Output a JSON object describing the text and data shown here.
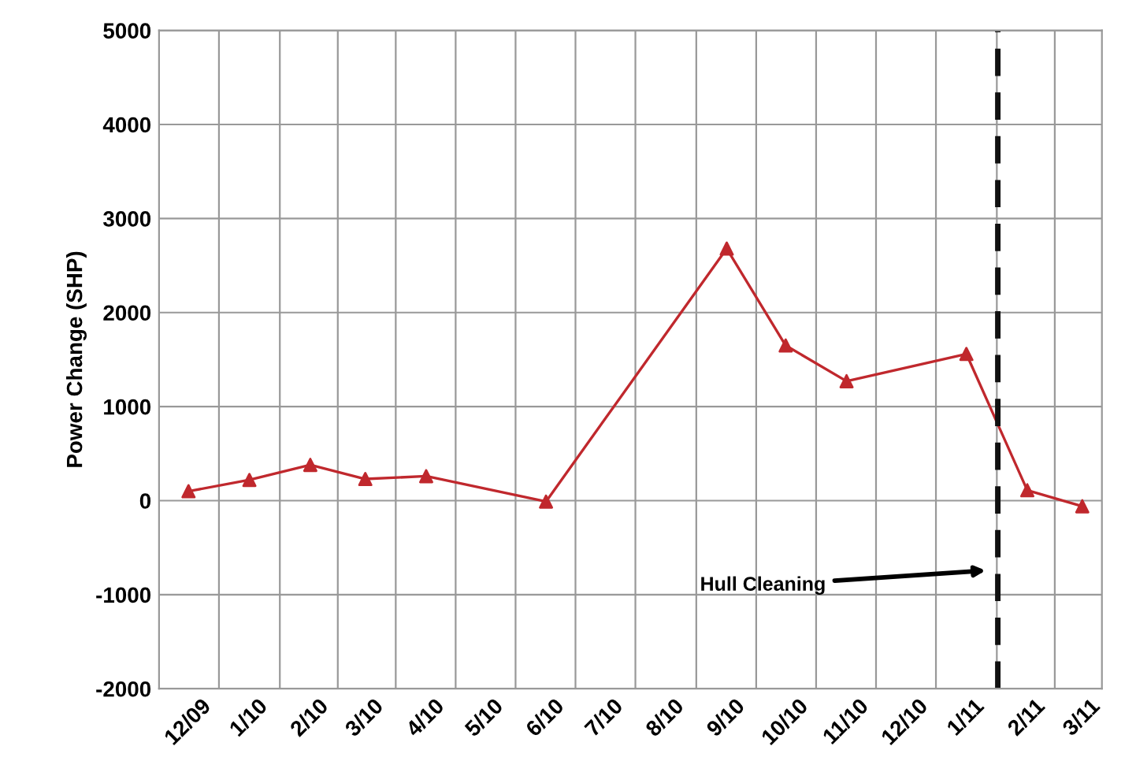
{
  "chart_data": {
    "type": "line",
    "ylabel": "Power Change (SHP)",
    "x": [
      "2009-12-15",
      "2010-01-15",
      "2010-02-15",
      "2010-03-15",
      "2010-04-15",
      "2010-06-15",
      "2010-09-15",
      "2010-10-15",
      "2010-11-15",
      "2011-01-15",
      "2011-02-15",
      "2011-03-15"
    ],
    "series": [
      {
        "color": "#c0282d",
        "values": [
          100,
          220,
          380,
          230,
          260,
          -10,
          2680,
          1650,
          1270,
          1560,
          110,
          -60
        ]
      }
    ],
    "xlim": [
      "2009-11-30",
      "2011-03-25"
    ],
    "xticks": [
      {
        "value": "2009-12-15",
        "label": "12/09"
      },
      {
        "value": "2010-01-15",
        "label": "1/10"
      },
      {
        "value": "2010-02-15",
        "label": "2/10"
      },
      {
        "value": "2010-03-15",
        "label": "3/10"
      },
      {
        "value": "2010-04-15",
        "label": "4/10"
      },
      {
        "value": "2010-05-15",
        "label": "5/10"
      },
      {
        "value": "2010-06-15",
        "label": "6/10"
      },
      {
        "value": "2010-07-15",
        "label": "7/10"
      },
      {
        "value": "2010-08-15",
        "label": "8/10"
      },
      {
        "value": "2010-09-15",
        "label": "9/10"
      },
      {
        "value": "2010-10-15",
        "label": "10/10"
      },
      {
        "value": "2010-11-15",
        "label": "11/10"
      },
      {
        "value": "2010-12-15",
        "label": "12/10"
      },
      {
        "value": "2011-01-15",
        "label": "1/11"
      },
      {
        "value": "2011-02-15",
        "label": "2/11"
      },
      {
        "value": "2011-03-15",
        "label": "3/11"
      }
    ],
    "ylim": [
      -2000,
      5000
    ],
    "yticks": [
      -2000,
      -1000,
      0,
      1000,
      2000,
      3000,
      4000,
      5000
    ],
    "ref_lines": [
      {
        "axis": "x",
        "value": "2011-01-31",
        "color": "#111111",
        "line_style": "dashed"
      }
    ],
    "annotations": [
      "Hull Cleaning"
    ],
    "grid": true,
    "marker": "triangle",
    "line_style": "solid"
  }
}
